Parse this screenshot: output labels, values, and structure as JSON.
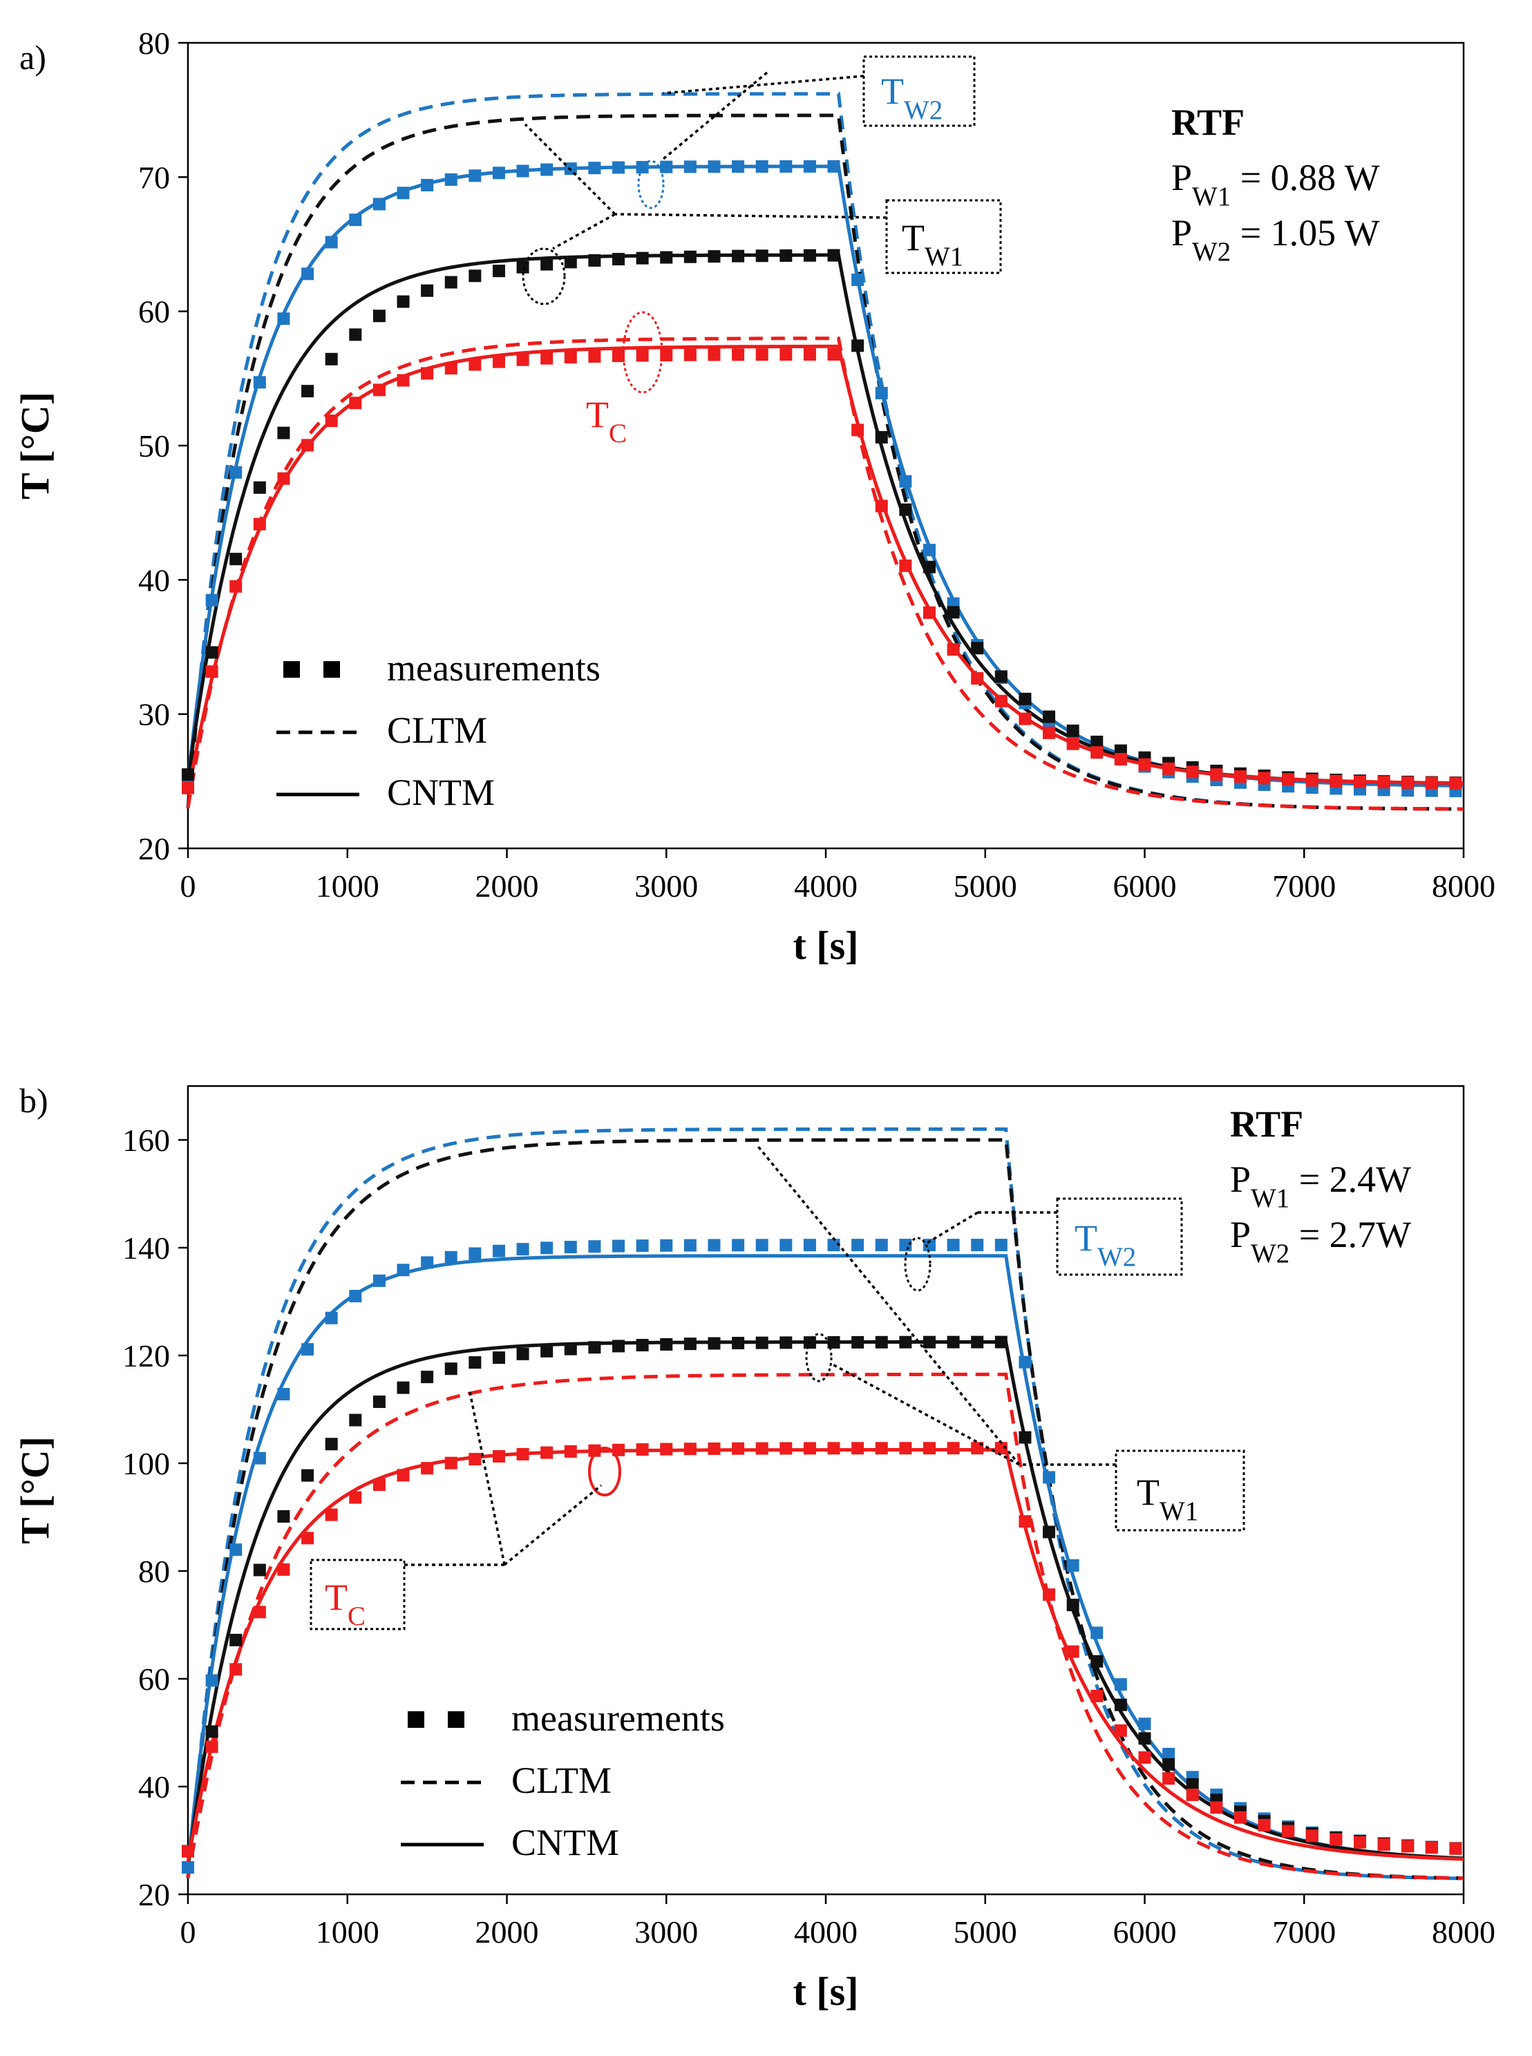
{
  "chart_data": [
    {
      "type": "line",
      "panel_label": "a)",
      "xlabel": "t [s]",
      "ylabel": "T [°C]",
      "xlim": [
        0,
        8000
      ],
      "ylim": [
        20,
        80
      ],
      "xticks": [
        0,
        1000,
        2000,
        3000,
        4000,
        5000,
        6000,
        7000,
        8000
      ],
      "yticks": [
        20,
        30,
        40,
        50,
        60,
        70,
        80
      ],
      "info": {
        "title": "RTF",
        "line1": "P_W1 = 0.88 W",
        "line2": "P_W2 = 1.05 W"
      },
      "legend": {
        "position": "bottom-left",
        "measurements": "measurements",
        "cltm": "CLTM",
        "cntm": "CNTM"
      },
      "series_labels": {
        "tw2": "T_W2",
        "tw1": "T_W1",
        "tc": "T_C"
      },
      "colors": {
        "tw2": "#1f77c4",
        "tw1": "#111111",
        "tc": "#ee1c1c"
      },
      "series": [
        {
          "name": "T_W2 CLTM",
          "color": "#1f77c4",
          "style": "dashed",
          "t0": 4080,
          "initial": 23,
          "steady": 76.2,
          "tau_heat": 380,
          "final": 22.9,
          "tau_cool": 520
        },
        {
          "name": "T_W1 CLTM",
          "color": "#111111",
          "style": "dashed",
          "t0": 4080,
          "initial": 23,
          "steady": 74.6,
          "tau_heat": 400,
          "final": 22.9,
          "tau_cool": 520
        },
        {
          "name": "T_C CLTM",
          "color": "#ee1c1c",
          "style": "dashed",
          "t0": 4080,
          "initial": 23,
          "steady": 58.0,
          "tau_heat": 480,
          "final": 22.9,
          "tau_cool": 560
        },
        {
          "name": "T_W2 CNTM",
          "color": "#1f77c4",
          "style": "solid",
          "t0": 4080,
          "initial": 25,
          "steady": 70.8,
          "tau_heat": 420,
          "final": 24.6,
          "tau_cool": 600
        },
        {
          "name": "T_W1 CNTM",
          "color": "#111111",
          "style": "solid",
          "t0": 4080,
          "initial": 25,
          "steady": 64.2,
          "tau_heat": 440,
          "final": 24.8,
          "tau_cool": 600
        },
        {
          "name": "T_C CNTM",
          "color": "#ee1c1c",
          "style": "solid",
          "t0": 4080,
          "initial": 24,
          "steady": 57.4,
          "tau_heat": 500,
          "final": 24.8,
          "tau_cool": 620
        }
      ],
      "measurements": [
        {
          "name": "T_W2 meas",
          "color": "#1f77c4",
          "t0": 4080,
          "initial": 25,
          "steady": 70.8,
          "tau_heat": 430,
          "final": 24.2,
          "tau_cool": 600
        },
        {
          "name": "T_W1 meas",
          "color": "#111111",
          "t0": 4080,
          "initial": 25.5,
          "steady": 64.2,
          "tau_heat": 560,
          "final": 24.8,
          "tau_cool": 640
        },
        {
          "name": "T_C meas",
          "color": "#ee1c1c",
          "t0": 4080,
          "initial": 24.5,
          "steady": 56.8,
          "tau_heat": 480,
          "final": 24.8,
          "tau_cool": 620
        }
      ]
    },
    {
      "type": "line",
      "panel_label": "b)",
      "xlabel": "t [s]",
      "ylabel": "T [°C]",
      "xlim": [
        0,
        8000
      ],
      "ylim": [
        20,
        170
      ],
      "xticks": [
        0,
        1000,
        2000,
        3000,
        4000,
        5000,
        6000,
        7000,
        8000
      ],
      "yticks": [
        20,
        40,
        60,
        80,
        100,
        120,
        140,
        160
      ],
      "info": {
        "title": "RTF",
        "line1": "P_W1 = 2.4W",
        "line2": "P_W2 = 2.7W"
      },
      "legend": {
        "position": "bottom-left",
        "measurements": "measurements",
        "cltm": "CLTM",
        "cntm": "CNTM"
      },
      "series_labels": {
        "tw2": "T_W2",
        "tw1": "T_W1",
        "tc": "T_C"
      },
      "colors": {
        "tw2": "#1f77c4",
        "tw1": "#111111",
        "tc": "#ee1c1c"
      },
      "series": [
        {
          "name": "T_W2 CLTM",
          "color": "#1f77c4",
          "style": "dashed",
          "t0": 5130,
          "initial": 23,
          "steady": 162,
          "tau_heat": 420,
          "final": 22.8,
          "tau_cool": 420
        },
        {
          "name": "T_W1 CLTM",
          "color": "#111111",
          "style": "dashed",
          "t0": 5130,
          "initial": 23,
          "steady": 160,
          "tau_heat": 440,
          "final": 22.8,
          "tau_cool": 440
        },
        {
          "name": "T_C CLTM",
          "color": "#ee1c1c",
          "style": "dashed",
          "t0": 5130,
          "initial": 23,
          "steady": 116.5,
          "tau_heat": 540,
          "final": 22.8,
          "tau_cool": 460
        },
        {
          "name": "T_W2 CNTM",
          "color": "#1f77c4",
          "style": "solid",
          "t0": 5130,
          "initial": 25,
          "steady": 138.5,
          "tau_heat": 380,
          "final": 26,
          "tau_cool": 560
        },
        {
          "name": "T_W1 CNTM",
          "color": "#111111",
          "style": "solid",
          "t0": 5130,
          "initial": 25,
          "steady": 122.5,
          "tau_heat": 430,
          "final": 26,
          "tau_cool": 580
        },
        {
          "name": "T_C CNTM",
          "color": "#ee1c1c",
          "style": "solid",
          "t0": 5130,
          "initial": 26,
          "steady": 102.5,
          "tau_heat": 450,
          "final": 26,
          "tau_cool": 580
        }
      ],
      "measurements": [
        {
          "name": "T_W2 meas",
          "color": "#1f77c4",
          "t0": 5130,
          "initial": 25,
          "steady": 140.5,
          "tau_heat": 420,
          "final": 27.8,
          "tau_cool": 560
        },
        {
          "name": "T_W1 meas",
          "color": "#111111",
          "t0": 5130,
          "initial": 28,
          "steady": 122.5,
          "tau_heat": 560,
          "final": 27.8,
          "tau_cool": 580
        },
        {
          "name": "T_C meas",
          "color": "#ee1c1c",
          "t0": 5130,
          "initial": 28,
          "steady": 102.8,
          "tau_heat": 500,
          "final": 27.8,
          "tau_cool": 600
        }
      ]
    }
  ]
}
